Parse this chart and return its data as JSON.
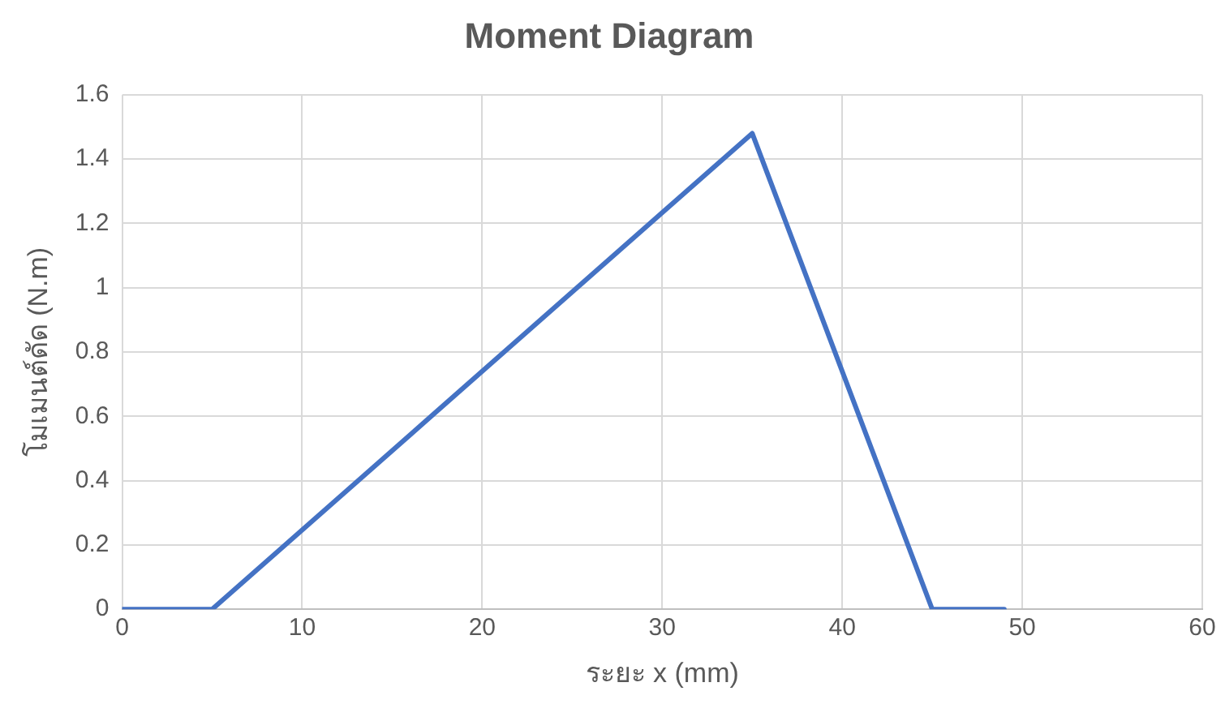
{
  "chart_data": {
    "type": "line",
    "title": "Moment Diagram",
    "xlabel": "ระยะ x (mm)",
    "ylabel": "โมเมนต์ดัด (N.m)",
    "x": [
      0,
      5,
      35,
      45,
      49
    ],
    "series": [
      {
        "color": "#4472c4",
        "values": [
          0,
          0,
          1.48,
          0,
          0
        ]
      }
    ],
    "xlim": [
      0,
      60
    ],
    "xticks": [
      0,
      10,
      20,
      30,
      40,
      50,
      60
    ],
    "ylim": [
      0,
      1.6
    ],
    "yticks": [
      0,
      0.2,
      0.4,
      0.6,
      0.8,
      1,
      1.2,
      1.4,
      1.6
    ],
    "grid": true,
    "legend": false,
    "marker": "none",
    "line_style": "solid"
  }
}
